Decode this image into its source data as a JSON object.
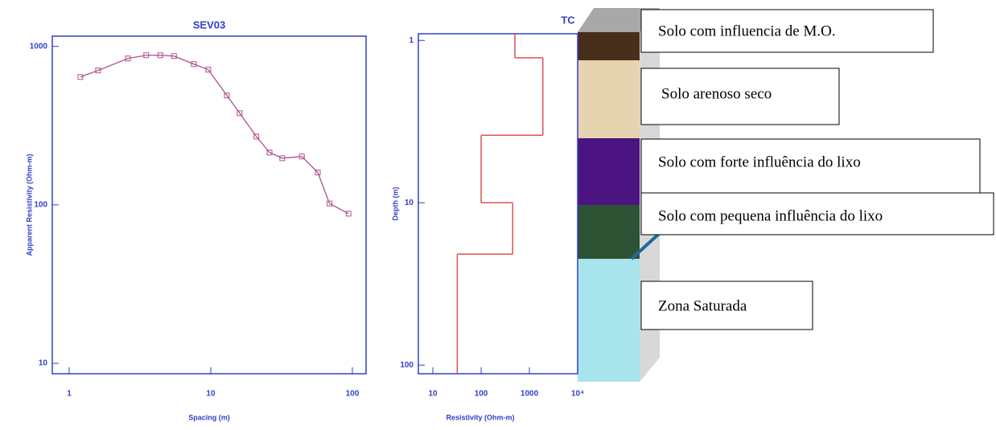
{
  "chart_data": [
    {
      "type": "line",
      "title": "SEV03",
      "x_label": "Spacing (m)",
      "y_label": "Apparent Resistivity (Ohm-m)",
      "log_x": true,
      "log_y": true,
      "marker": "square",
      "color": "#b0508a",
      "axis_color": "#3040c8",
      "xlim": [
        0.76,
        125
      ],
      "ylim": [
        8.6,
        1160
      ],
      "xticks": [
        1,
        10,
        100
      ],
      "yticks": [
        10,
        100,
        1000
      ],
      "x": [
        1.2,
        1.6,
        2.6,
        3.5,
        4.4,
        5.5,
        7.6,
        9.6,
        13,
        16,
        21,
        26,
        32,
        44,
        57,
        69,
        94
      ],
      "values": [
        641,
        705,
        839,
        879,
        879,
        869,
        773,
        713,
        490,
        379,
        270,
        214,
        197,
        202,
        160,
        102,
        88
      ]
    },
    {
      "type": "step",
      "title": "TC",
      "x_label": "Resistivity (Ohm-m)",
      "y_label": "Depth (m)",
      "log_x": true,
      "log_y": true,
      "y_reversed": true,
      "color": "#e05050",
      "axis_color": "#3040c8",
      "xlim": [
        5,
        10000
      ],
      "ylim": [
        0.91,
        113
      ],
      "xticks": [
        10,
        100,
        1000,
        {
          "value": 10000,
          "label": "10⁴"
        }
      ],
      "yticks": [
        1,
        10,
        100
      ],
      "resistivity": [
        500,
        1900,
        100,
        450,
        32
      ],
      "depths": [
        1.28,
        3.84,
        10,
        20.7
      ]
    }
  ],
  "diagram": {
    "layers": [
      "Solo com influencia de M.O.",
      "Solo arenoso seco",
      "Solo com forte influência do lixo",
      "Solo com pequena influência do lixo",
      "Zona Saturada"
    ]
  }
}
